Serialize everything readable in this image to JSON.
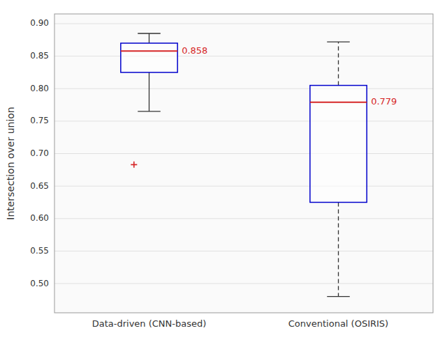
{
  "chart_data": {
    "type": "box",
    "ylabel": "Intersection over union",
    "categories": [
      "Data-driven (CNN-based)",
      "Conventional (OSIRIS)"
    ],
    "boxes": [
      {
        "q1": 0.825,
        "median": 0.858,
        "q3": 0.87,
        "whisker_low": 0.765,
        "whisker_high": 0.885,
        "outliers": [
          0.683
        ],
        "line_style": "solid"
      },
      {
        "q1": 0.625,
        "median": 0.779,
        "q3": 0.805,
        "whisker_low": 0.48,
        "whisker_high": 0.872,
        "outliers": [],
        "line_style": "dashed"
      }
    ],
    "ylim": [
      0.455,
      0.915
    ],
    "yticks": [
      {
        "value": 0.5,
        "label": "0.50"
      },
      0.55,
      {
        "value": 0.6,
        "label": "0.60"
      },
      0.65,
      {
        "value": 0.7,
        "label": "0.70"
      },
      0.75,
      {
        "value": 0.8,
        "label": "0.80"
      },
      0.85,
      {
        "value": 0.9,
        "label": "0.90"
      }
    ],
    "grid": true,
    "data_labels": true,
    "color": "#0000cc"
  }
}
